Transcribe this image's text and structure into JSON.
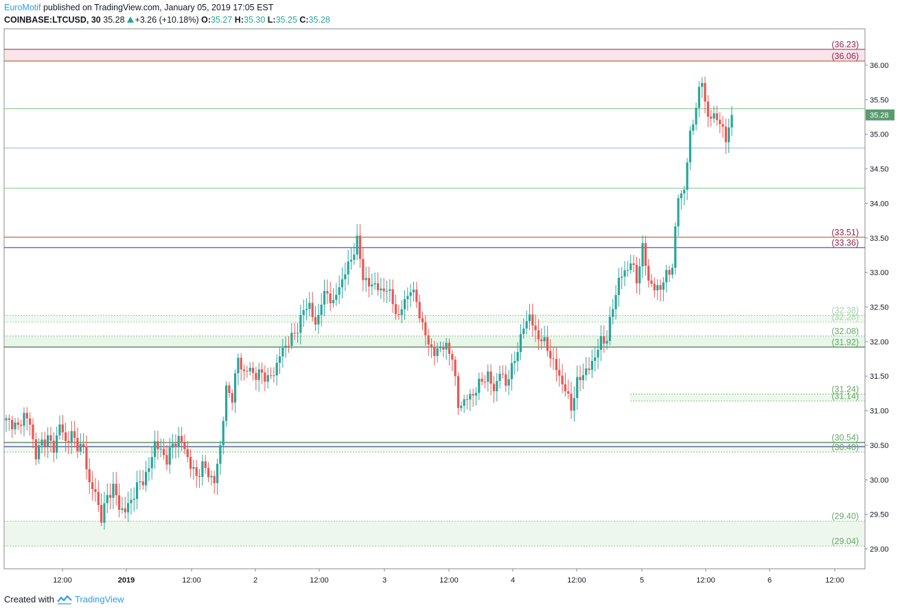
{
  "header": {
    "author": "EuroMotif",
    "published_text": "published on TradingView.com, January 05, 2019 17:05 EST"
  },
  "symbol_bar": {
    "symbol": "COINBASE:LTCUSD, 30",
    "last": "35.28",
    "change": "+3.26 (+10.18%)",
    "o_label": "O:",
    "o": "35.27",
    "h_label": "H:",
    "h": "35.30",
    "l_label": "L:",
    "l": "35.25",
    "c_label": "C:",
    "c": "35.28"
  },
  "footer": {
    "created_with": "Created with",
    "brand": "TradingView"
  },
  "colors": {
    "up": "#26a69a",
    "down": "#ef5350",
    "zone_red": "#f8e0e6",
    "zone_green": "#e8f5e9",
    "author": "#2e9ce6"
  },
  "chart_data": {
    "type": "candlestick",
    "ylim": [
      28.7,
      36.5
    ],
    "y_ticks": [
      "29.00",
      "29.50",
      "30.00",
      "30.50",
      "31.00",
      "31.50",
      "32.00",
      "32.50",
      "33.00",
      "33.50",
      "34.00",
      "34.50",
      "35.00",
      "35.50",
      "36.00"
    ],
    "x_ticks": [
      "12:00",
      "2019",
      "12:00",
      "2",
      "12:00",
      "3",
      "12:00",
      "4",
      "12:00",
      "5",
      "12:00",
      "6",
      "12:00"
    ],
    "current_price": "35.28",
    "levels": [
      {
        "label": "(36.23)",
        "value": 36.23,
        "color": "#8e244d",
        "label_color": "#8e244d"
      },
      {
        "label": "(36.06)",
        "value": 36.06,
        "color": "#b34718",
        "label_color": "#8e244d"
      },
      {
        "label": "(33.51)",
        "value": 33.51,
        "color": "#b34718",
        "label_color": "#8e244d"
      },
      {
        "label": "(33.36)",
        "value": 33.36,
        "color": "#3a16c8",
        "label_color": "#8e244d"
      },
      {
        "label": "(32.38)",
        "value": 32.38,
        "color": "#8fd08f",
        "label_color": "#a5d6a7"
      },
      {
        "label": "(32.28)",
        "value": 32.28,
        "color": "#a5d6a7",
        "label_color": "#a5d6a7"
      },
      {
        "label": "(32.08)",
        "value": 32.08,
        "color": "#81c784",
        "label_color": "#66a866"
      },
      {
        "label": "(31.92)",
        "value": 31.92,
        "color": "#1b5e20",
        "label_color": "#66a866"
      },
      {
        "label": "(31.24)",
        "value": 31.24,
        "color": "#81c784",
        "label_color": "#66a866"
      },
      {
        "label": "(31.14)",
        "value": 31.14,
        "color": "#81c784",
        "label_color": "#66a866"
      },
      {
        "label": "(30.54)",
        "value": 30.54,
        "color": "#1b5e20",
        "label_color": "#66a866"
      },
      {
        "label": "(30.40)",
        "value": 30.4,
        "color": "#81c784",
        "label_color": "#66a866"
      },
      {
        "label": "(29.40)",
        "value": 29.4,
        "color": "#81c784",
        "label_color": "#66a866"
      },
      {
        "label": "(29.04)",
        "value": 29.04,
        "color": "#81c784",
        "label_color": "#66a866"
      }
    ],
    "extra_lines": [
      {
        "value": 35.37,
        "color": "#81c784"
      },
      {
        "value": 34.8,
        "color": "#90b4d8"
      },
      {
        "value": 34.22,
        "color": "#81c784"
      },
      {
        "value": 30.48,
        "color": "#1a237e"
      }
    ],
    "zones": [
      {
        "from": 36.06,
        "to": 36.23,
        "color": "#fbe4ea"
      },
      {
        "from": 31.92,
        "to": 32.08,
        "color": "#e8f5e9"
      },
      {
        "from": 32.28,
        "to": 32.38,
        "color": "#f1f8f1"
      },
      {
        "from": 31.14,
        "to": 31.24,
        "color": "#eef7ee",
        "partial": true
      },
      {
        "from": 30.4,
        "to": 30.54,
        "color": "#f1f8f1"
      },
      {
        "from": 29.04,
        "to": 29.4,
        "color": "#eef7ee"
      }
    ],
    "anchors": [
      [
        0,
        30.85
      ],
      [
        2,
        30.82
      ],
      [
        4,
        30.75
      ],
      [
        6,
        30.95
      ],
      [
        8,
        30.8
      ],
      [
        10,
        30.35
      ],
      [
        12,
        30.55
      ],
      [
        14,
        30.6
      ],
      [
        16,
        30.45
      ],
      [
        18,
        30.8
      ],
      [
        20,
        30.55
      ],
      [
        22,
        30.65
      ],
      [
        24,
        30.5
      ],
      [
        26,
        30.45
      ],
      [
        28,
        29.95
      ],
      [
        30,
        29.8
      ],
      [
        32,
        29.45
      ],
      [
        34,
        29.75
      ],
      [
        36,
        29.9
      ],
      [
        38,
        29.6
      ],
      [
        40,
        29.55
      ],
      [
        42,
        29.7
      ],
      [
        44,
        29.9
      ],
      [
        46,
        30.0
      ],
      [
        48,
        30.15
      ],
      [
        50,
        30.55
      ],
      [
        52,
        30.4
      ],
      [
        54,
        30.3
      ],
      [
        56,
        30.5
      ],
      [
        58,
        30.6
      ],
      [
        60,
        30.45
      ],
      [
        62,
        30.2
      ],
      [
        64,
        30.05
      ],
      [
        66,
        30.2
      ],
      [
        68,
        30.1
      ],
      [
        70,
        29.95
      ],
      [
        72,
        30.5
      ],
      [
        74,
        31.3
      ],
      [
        76,
        31.2
      ],
      [
        78,
        31.75
      ],
      [
        80,
        31.55
      ],
      [
        82,
        31.6
      ],
      [
        84,
        31.5
      ],
      [
        86,
        31.55
      ],
      [
        88,
        31.45
      ],
      [
        90,
        31.55
      ],
      [
        92,
        31.8
      ],
      [
        94,
        31.95
      ],
      [
        96,
        32.05
      ],
      [
        98,
        32.2
      ],
      [
        100,
        32.45
      ],
      [
        102,
        32.55
      ],
      [
        104,
        32.2
      ],
      [
        106,
        32.6
      ],
      [
        108,
        32.7
      ],
      [
        110,
        32.55
      ],
      [
        112,
        32.8
      ],
      [
        114,
        33.0
      ],
      [
        116,
        33.2
      ],
      [
        118,
        33.45
      ],
      [
        120,
        32.95
      ],
      [
        122,
        32.8
      ],
      [
        124,
        32.85
      ],
      [
        126,
        32.7
      ],
      [
        128,
        32.8
      ],
      [
        130,
        32.55
      ],
      [
        132,
        32.35
      ],
      [
        134,
        32.6
      ],
      [
        136,
        32.75
      ],
      [
        138,
        32.6
      ],
      [
        140,
        32.2
      ],
      [
        142,
        32.0
      ],
      [
        144,
        31.8
      ],
      [
        146,
        31.95
      ],
      [
        148,
        31.9
      ],
      [
        150,
        31.8
      ],
      [
        152,
        31.05
      ],
      [
        154,
        31.15
      ],
      [
        156,
        31.2
      ],
      [
        158,
        31.3
      ],
      [
        160,
        31.45
      ],
      [
        162,
        31.5
      ],
      [
        164,
        31.3
      ],
      [
        166,
        31.55
      ],
      [
        168,
        31.4
      ],
      [
        170,
        31.6
      ],
      [
        172,
        31.9
      ],
      [
        174,
        32.2
      ],
      [
        176,
        32.4
      ],
      [
        178,
        32.1
      ],
      [
        180,
        32.05
      ],
      [
        182,
        31.9
      ],
      [
        184,
        31.7
      ],
      [
        186,
        31.5
      ],
      [
        188,
        31.3
      ],
      [
        190,
        31.05
      ],
      [
        192,
        31.4
      ],
      [
        194,
        31.55
      ],
      [
        196,
        31.6
      ],
      [
        198,
        31.8
      ],
      [
        200,
        32.0
      ],
      [
        202,
        32.05
      ],
      [
        204,
        32.5
      ],
      [
        206,
        32.9
      ],
      [
        208,
        33.0
      ],
      [
        210,
        33.15
      ],
      [
        212,
        32.9
      ],
      [
        214,
        33.35
      ],
      [
        216,
        32.9
      ],
      [
        218,
        32.75
      ],
      [
        220,
        32.8
      ],
      [
        222,
        32.95
      ],
      [
        224,
        33.1
      ],
      [
        226,
        34.1
      ],
      [
        228,
        34.2
      ],
      [
        230,
        35.0
      ],
      [
        232,
        35.4
      ],
      [
        234,
        35.8
      ],
      [
        236,
        35.2
      ],
      [
        238,
        35.3
      ],
      [
        240,
        35.15
      ],
      [
        242,
        34.95
      ],
      [
        244,
        35.28
      ]
    ]
  }
}
